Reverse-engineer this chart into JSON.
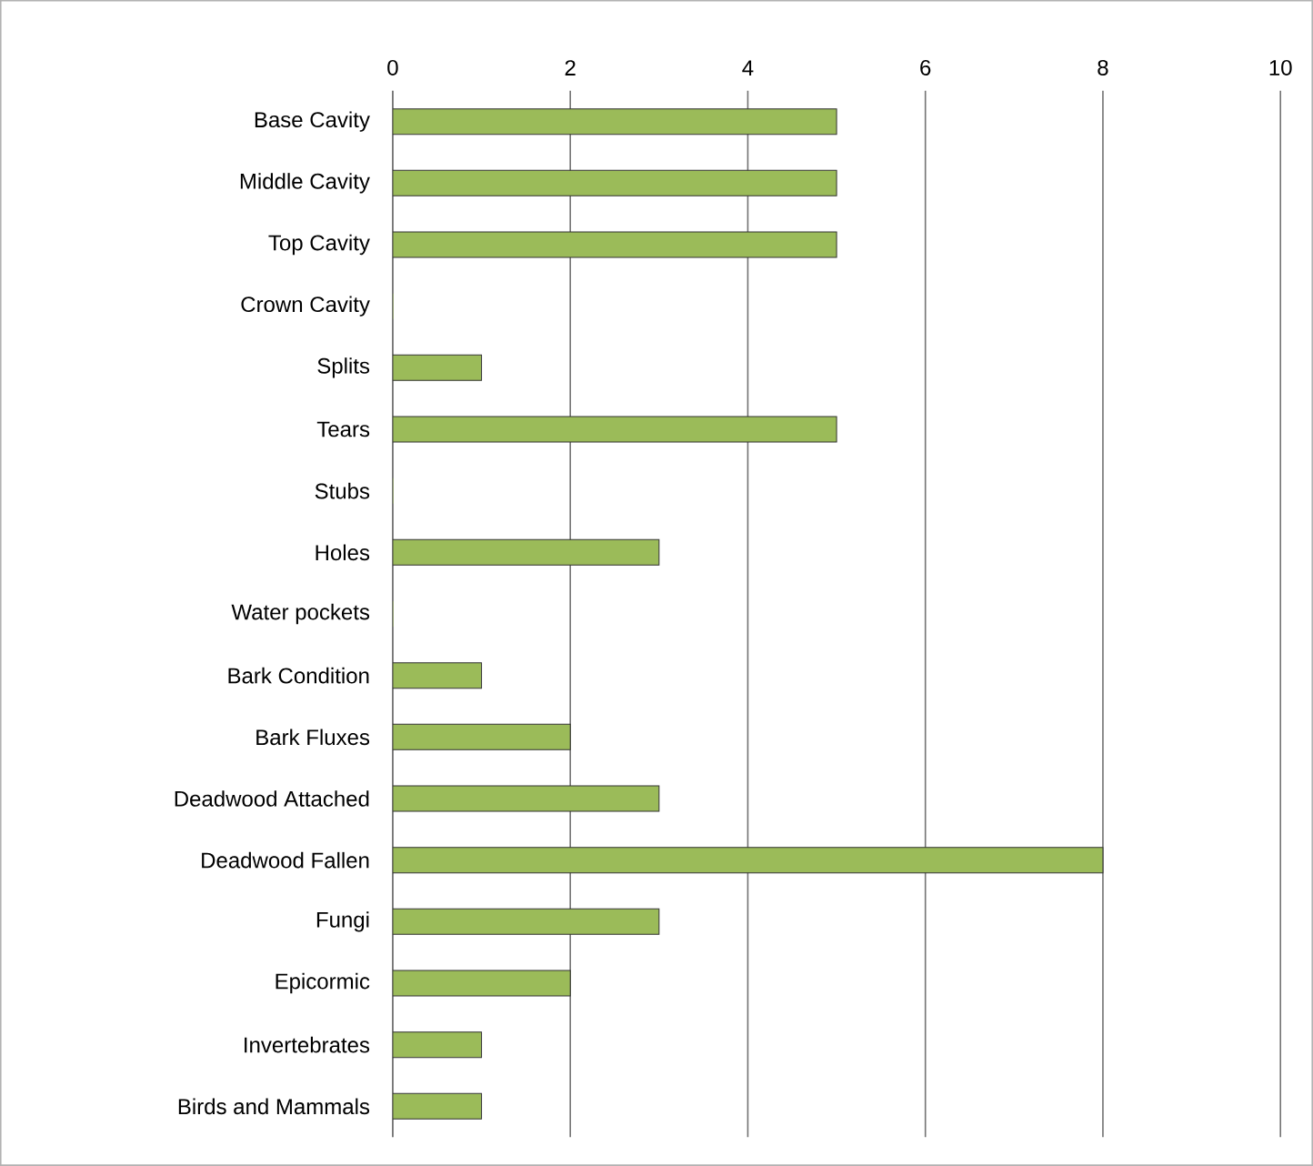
{
  "chart_data": {
    "type": "bar",
    "orientation": "horizontal",
    "categories": [
      "Base Cavity",
      "Middle Cavity",
      "Top Cavity",
      "Crown Cavity",
      "Splits",
      "Tears",
      "Stubs",
      "Holes",
      "Water pockets",
      "Bark Condition",
      "Bark Fluxes",
      "Deadwood Attached",
      "Deadwood Fallen",
      "Fungi",
      "Epicormic",
      "Invertebrates",
      "Birds and Mammals"
    ],
    "values": [
      5,
      5,
      5,
      0,
      1,
      5,
      0,
      3,
      0,
      1,
      2,
      3,
      8,
      3,
      2,
      1,
      1
    ],
    "color": "#9bbb59",
    "xlim": [
      0,
      10
    ],
    "xticks": [
      0,
      2,
      4,
      6,
      8,
      10
    ],
    "grid": "x"
  }
}
